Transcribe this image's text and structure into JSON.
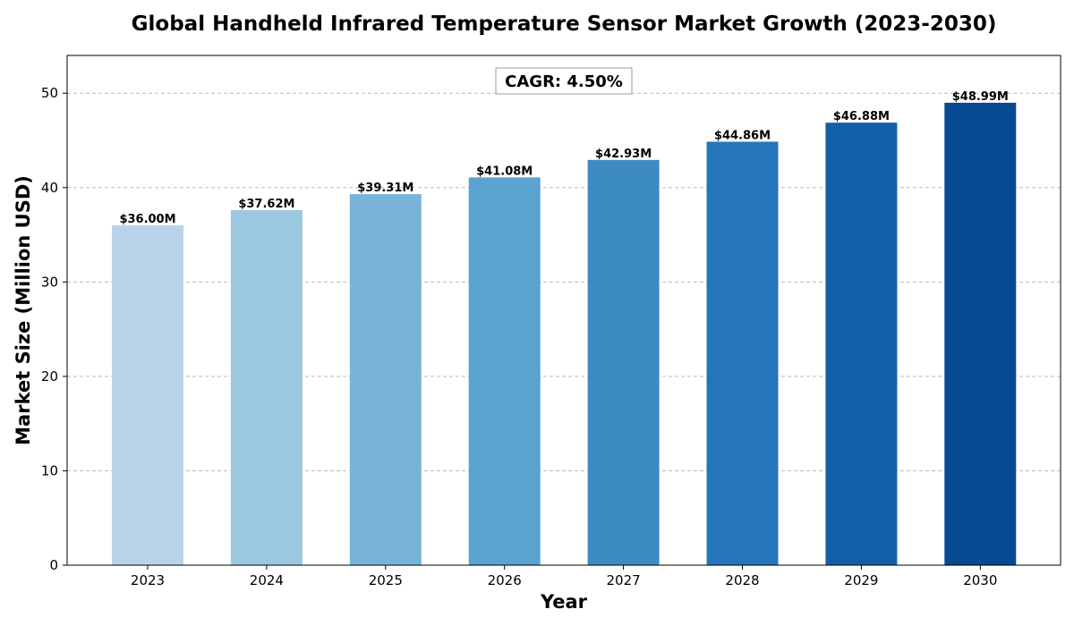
{
  "chart_data": {
    "type": "bar",
    "title": "Global Handheld Infrared Temperature Sensor Market Growth (2023-2030)",
    "xlabel": "Year",
    "ylabel": "Market Size (Million USD)",
    "categories": [
      "2023",
      "2024",
      "2025",
      "2026",
      "2027",
      "2028",
      "2029",
      "2030"
    ],
    "values": [
      36.0,
      37.62,
      39.31,
      41.08,
      42.93,
      44.86,
      46.88,
      48.99
    ],
    "data_labels": [
      "$36.00M",
      "$37.62M",
      "$39.31M",
      "$41.08M",
      "$42.93M",
      "$44.86M",
      "$46.88M",
      "$48.99M"
    ],
    "colors": [
      "#b9d4ea",
      "#9bc8e0",
      "#78b4d8",
      "#5aa2cf",
      "#3d8bc3",
      "#2675b8",
      "#125fa8",
      "#084a91"
    ],
    "ylim": [
      0,
      54
    ],
    "yticks": [
      0,
      10,
      20,
      30,
      40,
      50
    ],
    "grid": "y-dashed",
    "annotation": "CAGR: 4.50%"
  }
}
